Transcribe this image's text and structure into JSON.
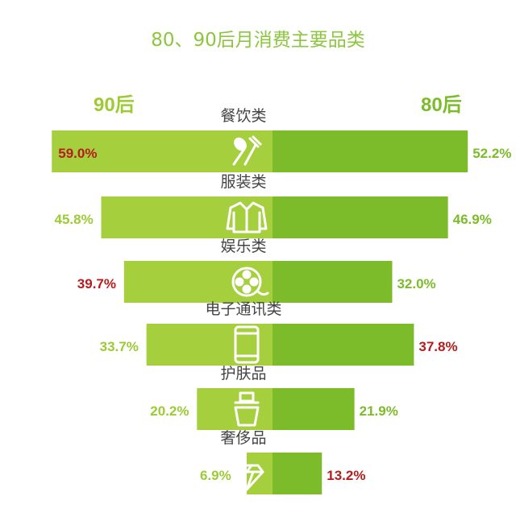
{
  "chart_data": {
    "type": "bar",
    "title": "80、90后月消费主要品类",
    "left_series": "90后",
    "right_series": "80后",
    "categories": [
      "餐饮类",
      "服装类",
      "娱乐类",
      "电子通讯类",
      "护肤品",
      "奢侈品"
    ],
    "icons": [
      "fork-spoon-icon",
      "jacket-icon",
      "film-reel-icon",
      "phone-icon",
      "skincare-bottle-icon",
      "diamond-icon"
    ],
    "series": [
      {
        "name": "90后",
        "values": [
          59.0,
          45.8,
          39.7,
          33.7,
          20.2,
          6.9
        ],
        "labels": [
          "59.0%",
          "45.8%",
          "39.7%",
          "33.7%",
          "20.2%",
          "6.9%"
        ],
        "label_colors": [
          "#b71c1c",
          "#9ccb34",
          "#b71c1c",
          "#9ccb34",
          "#9ccb34",
          "#9ccb34"
        ]
      },
      {
        "name": "80后",
        "values": [
          52.2,
          46.9,
          32.0,
          37.8,
          21.9,
          13.2
        ],
        "labels": [
          "52.2%",
          "46.9%",
          "32.0%",
          "37.8%",
          "21.9%",
          "13.2%"
        ],
        "label_colors": [
          "#7cbb2a",
          "#7cbb2a",
          "#7cbb2a",
          "#b71c1c",
          "#7cbb2a",
          "#b71c1c"
        ]
      }
    ],
    "colors": {
      "left_bar": "#a6cf3e",
      "right_bar": "#7cbb2a",
      "highlight": "#b71c1c"
    }
  }
}
